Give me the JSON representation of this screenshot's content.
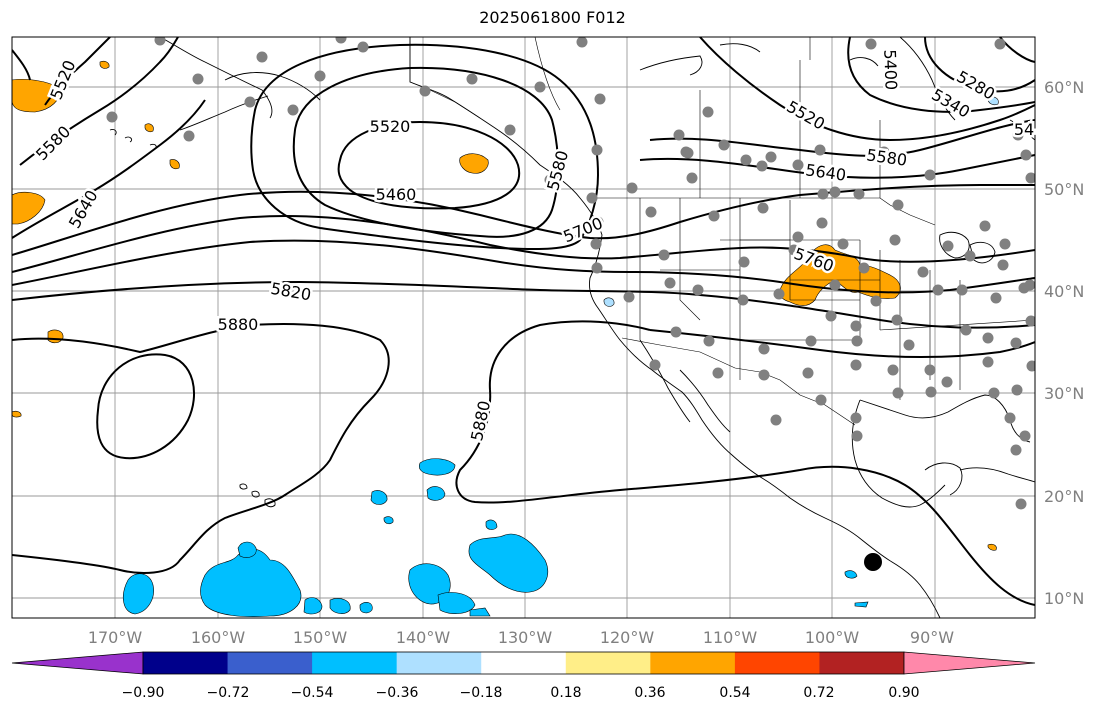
{
  "title": "2025061800 F012",
  "colors": {
    "land_outline": "#000000",
    "grid": "#999999",
    "contour": "#000000",
    "station": "#808080",
    "orange": "#ffa500",
    "cyan": "#00bfff",
    "light_blue": "#aee0ff"
  },
  "lon_labels": [
    "170°W",
    "160°W",
    "150°W",
    "140°W",
    "130°W",
    "120°W",
    "110°W",
    "100°W",
    "90°W"
  ],
  "lat_labels": [
    "60°N",
    "50°N",
    "40°N",
    "30°N",
    "20°N",
    "10°N"
  ],
  "contour_labels": [
    "5520",
    "5580",
    "5640",
    "5520",
    "5460",
    "5580",
    "5700",
    "5820",
    "5880",
    "5880",
    "5520",
    "5640",
    "5580",
    "5760",
    "5280",
    "5340",
    "5400",
    "54"
  ],
  "colorbar": {
    "colors": [
      "#9932cc",
      "#00008b",
      "#3a5fcd",
      "#00bfff",
      "#aee0ff",
      "#ffffff",
      "#ffee88",
      "#ffa500",
      "#ff4500",
      "#b22222",
      "#ff88aa"
    ],
    "ticks": [
      "−0.90",
      "−0.72",
      "−0.54",
      "−0.36",
      "−0.18",
      "0.18",
      "0.36",
      "0.54",
      "0.72",
      "0.90"
    ]
  },
  "marker": {
    "name": "storm-center",
    "color": "#000000"
  }
}
